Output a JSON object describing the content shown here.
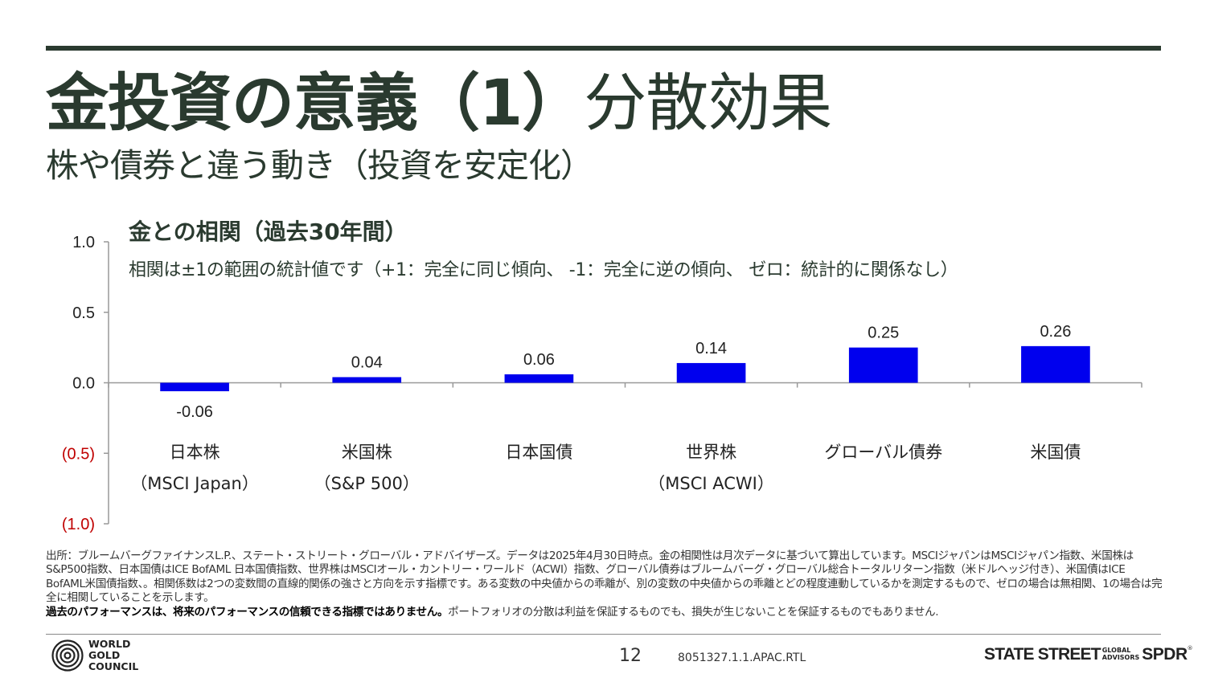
{
  "header": {
    "title_bold": "金投資の意義（1）",
    "title_light": "分散効果",
    "subtitle": "株や債券と違う動き（投資を安定化）"
  },
  "chart_heading": {
    "title": "金との相関（過去30年間）",
    "note": "相関は±1の範囲の統計値です（+1：完全に同じ傾向、 -1：完全に逆の傾向、 ゼロ：統計的に関係なし）"
  },
  "chart_data": {
    "type": "bar",
    "title": "金との相関（過去30年間）",
    "categories": [
      {
        "line1": "日本株",
        "line2": "（MSCI Japan）"
      },
      {
        "line1": "米国株",
        "line2": "（S&P 500）"
      },
      {
        "line1": "日本国債",
        "line2": ""
      },
      {
        "line1": "世界株",
        "line2": "（MSCI ACWI）"
      },
      {
        "line1": "グローバル債券",
        "line2": ""
      },
      {
        "line1": "米国債",
        "line2": ""
      }
    ],
    "values": [
      -0.06,
      0.04,
      0.06,
      0.14,
      0.25,
      0.26
    ],
    "data_labels": [
      "-0.06",
      "0.04",
      "0.06",
      "0.14",
      "0.25",
      "0.26"
    ],
    "ylim": [
      -1.0,
      1.0
    ],
    "yticks": [
      {
        "value": 1.0,
        "label": "1.0"
      },
      {
        "value": 0.5,
        "label": "0.5"
      },
      {
        "value": 0.0,
        "label": "0.0"
      },
      {
        "value": -0.5,
        "label": "(0.5)"
      },
      {
        "value": -1.0,
        "label": "(1.0)"
      }
    ],
    "bar_color": "#0000ee",
    "negative_tick_color": "#c00000",
    "grid": false,
    "legend": "none"
  },
  "footer": {
    "source_text": "出所：ブルームバーグファイナンスL.P.、ステート・ストリート・グローバル・アドバイザーズ。データは2025年4月30日時点。金の相関性は月次データに基づいて算出しています。MSCIジャパンはMSCIジャパン指数、米国株はS&P500指数、日本国債はICE BofAML 日本国債指数、世界株はMSCIオール・カントリー・ワールド（ACWI）指数、グローバル債券はブルームバーグ・グローバル総合トータルリターン指数（米ドルヘッジ付き）、米国債はICE BofAML米国債指数、。相関係数は2つの変数間の直線的関係の強さと方向を示す指標です。ある変数の中央値からの乖離が、別の変数の中央値からの乖離とどの程度連動しているかを測定するもので、ゼロの場合は無相関、1の場合は完全に相関していることを示します。",
    "disclaimer_bold": "過去のパフォーマンスは、将来のパフォーマンスの信頼できる指標ではありません。",
    "disclaimer_rest": "ポートフォリオの分散は利益を保証するものでも、損失が生じないことを保証するものでもありません.",
    "logo_text": [
      "WORLD",
      "GOLD",
      "COUNCIL"
    ],
    "page_number": "12",
    "doc_code": "8051327.1.1.APAC.RTL",
    "brand_main": "STATE STREET",
    "brand_sub": [
      "GLOBAL",
      "ADVISORS"
    ],
    "brand_spdr": "SPDR",
    "brand_reg": "®"
  },
  "colors": {
    "title": "#2a3a2f",
    "bar": "#0000ee",
    "negative": "#c00000"
  }
}
